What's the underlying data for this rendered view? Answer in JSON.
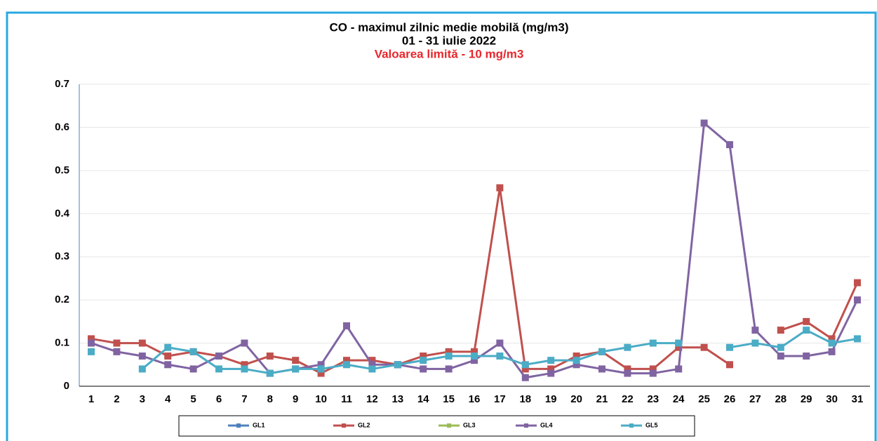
{
  "chart_data": {
    "type": "line",
    "title": "CO - maximul zilnic medie mobilă (mg/m3)",
    "subtitle": "01 - 31 iulie 2022",
    "annotation": "Valoarea limită - 10 mg/m3",
    "categories": [
      1,
      2,
      3,
      4,
      5,
      6,
      7,
      8,
      9,
      10,
      11,
      12,
      13,
      14,
      15,
      16,
      17,
      18,
      19,
      20,
      21,
      22,
      23,
      24,
      25,
      26,
      27,
      28,
      29,
      30,
      31
    ],
    "series": [
      {
        "name": "GL1",
        "color": "#4f81bd",
        "values": [
          null,
          null,
          null,
          null,
          null,
          null,
          null,
          null,
          null,
          null,
          null,
          null,
          null,
          null,
          null,
          null,
          null,
          null,
          null,
          null,
          null,
          null,
          null,
          null,
          null,
          null,
          null,
          null,
          null,
          null,
          null
        ]
      },
      {
        "name": "GL2",
        "color": "#c0504d",
        "values": [
          0.11,
          0.1,
          0.1,
          0.07,
          0.08,
          0.07,
          0.05,
          0.07,
          0.06,
          0.03,
          0.06,
          0.06,
          0.05,
          0.07,
          0.08,
          0.08,
          0.46,
          0.04,
          0.04,
          0.07,
          0.08,
          0.04,
          0.04,
          0.09,
          0.09,
          0.05,
          null,
          0.13,
          0.15,
          0.11,
          0.24
        ]
      },
      {
        "name": "GL3",
        "color": "#9bbb59",
        "values": [
          null,
          null,
          null,
          null,
          null,
          null,
          null,
          null,
          null,
          null,
          null,
          null,
          null,
          null,
          null,
          null,
          null,
          null,
          null,
          null,
          null,
          null,
          null,
          null,
          null,
          null,
          null,
          null,
          null,
          null,
          null
        ]
      },
      {
        "name": "GL4",
        "color": "#8064a2",
        "values": [
          0.1,
          0.08,
          0.07,
          0.05,
          0.04,
          0.07,
          0.1,
          0.03,
          0.04,
          0.05,
          0.14,
          0.05,
          0.05,
          0.04,
          0.04,
          0.06,
          0.1,
          0.02,
          0.03,
          0.05,
          0.04,
          0.03,
          0.03,
          0.04,
          0.61,
          0.56,
          0.13,
          0.07,
          0.07,
          0.08,
          0.2
        ]
      },
      {
        "name": "GL5",
        "color": "#4bacc6",
        "values": [
          0.08,
          null,
          0.04,
          0.09,
          0.08,
          0.04,
          0.04,
          0.03,
          0.04,
          0.04,
          0.05,
          0.04,
          0.05,
          0.06,
          0.07,
          0.07,
          0.07,
          0.05,
          0.06,
          0.06,
          0.08,
          0.09,
          0.1,
          0.1,
          null,
          0.09,
          0.1,
          0.09,
          0.13,
          0.1,
          0.11
        ]
      }
    ],
    "ylim": [
      0,
      0.7
    ],
    "yticks": [
      0,
      0.1,
      0.2,
      0.3,
      0.4,
      0.5,
      0.6,
      0.7
    ],
    "grid": true,
    "legend": "bottom"
  }
}
